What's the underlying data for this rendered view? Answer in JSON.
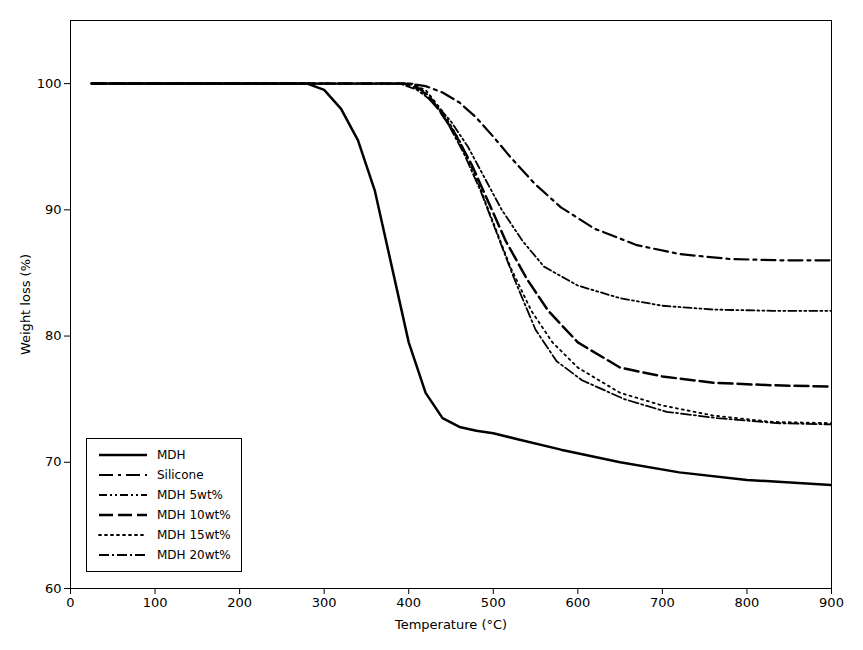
{
  "chart_data": {
    "type": "line",
    "xlabel": "Temperature (°C)",
    "ylabel": "Weight loss (%)",
    "xlim": [
      0,
      900
    ],
    "ylim": [
      60,
      105
    ],
    "xticks": [
      0,
      100,
      200,
      300,
      400,
      500,
      600,
      700,
      800,
      900
    ],
    "yticks": [
      60,
      70,
      80,
      90,
      100
    ],
    "grid": false,
    "legend": "lower left",
    "series": [
      {
        "name": "MDH",
        "color": "#000000",
        "line_style": "solid",
        "x": [
          25,
          280,
          300,
          320,
          340,
          360,
          380,
          400,
          420,
          440,
          460,
          480,
          500,
          530,
          580,
          650,
          720,
          800,
          900
        ],
        "values": [
          100,
          100,
          99.5,
          98.0,
          95.5,
          91.5,
          85.5,
          79.5,
          75.5,
          73.5,
          72.8,
          72.5,
          72.3,
          71.8,
          71.0,
          70.0,
          69.2,
          68.6,
          68.2
        ]
      },
      {
        "name": "Silicone",
        "color": "#000000",
        "line_style": "long_dash_dot",
        "x": [
          25,
          380,
          400,
          420,
          440,
          460,
          480,
          500,
          520,
          550,
          580,
          620,
          670,
          720,
          780,
          840,
          900
        ],
        "values": [
          100,
          100,
          100,
          99.8,
          99.3,
          98.5,
          97.3,
          95.8,
          94.2,
          92.0,
          90.2,
          88.5,
          87.2,
          86.5,
          86.1,
          86.0,
          86.0
        ]
      },
      {
        "name": "MDH 5wt%",
        "color": "#000000",
        "line_style": "dash_dot_dot",
        "x": [
          25,
          390,
          410,
          430,
          450,
          470,
          490,
          510,
          535,
          560,
          600,
          650,
          700,
          760,
          830,
          900
        ],
        "values": [
          100,
          100,
          99.5,
          98.5,
          97.0,
          95.0,
          92.5,
          90.0,
          87.5,
          85.5,
          84.0,
          83.0,
          82.4,
          82.1,
          82.0,
          82.0
        ]
      },
      {
        "name": "MDH 10wt%",
        "color": "#000000",
        "line_style": "long_dash",
        "x": [
          25,
          395,
          415,
          435,
          455,
          475,
          495,
          515,
          540,
          565,
          600,
          650,
          700,
          760,
          830,
          900
        ],
        "values": [
          100,
          100,
          99.5,
          98.0,
          96.0,
          93.5,
          90.5,
          87.5,
          84.5,
          82.0,
          79.5,
          77.5,
          76.8,
          76.3,
          76.1,
          76.0
        ]
      },
      {
        "name": "MDH 15wt%",
        "color": "#000000",
        "line_style": "dotted",
        "x": [
          25,
          400,
          420,
          440,
          460,
          480,
          500,
          520,
          545,
          570,
          600,
          650,
          700,
          760,
          830,
          900
        ],
        "values": [
          100,
          100,
          99.5,
          97.8,
          95.5,
          92.5,
          89.0,
          85.5,
          82.0,
          79.5,
          77.5,
          75.5,
          74.5,
          73.7,
          73.2,
          73.1
        ]
      },
      {
        "name": "MDH 20wt%",
        "color": "#000000",
        "line_style": "dash_dot",
        "x": [
          25,
          405,
          425,
          445,
          465,
          485,
          505,
          525,
          550,
          575,
          605,
          655,
          705,
          765,
          835,
          900
        ],
        "values": [
          100,
          100,
          99.0,
          97.0,
          94.5,
          91.5,
          88.0,
          84.5,
          80.5,
          78.0,
          76.5,
          75.0,
          74.0,
          73.5,
          73.1,
          73.0
        ]
      }
    ]
  }
}
